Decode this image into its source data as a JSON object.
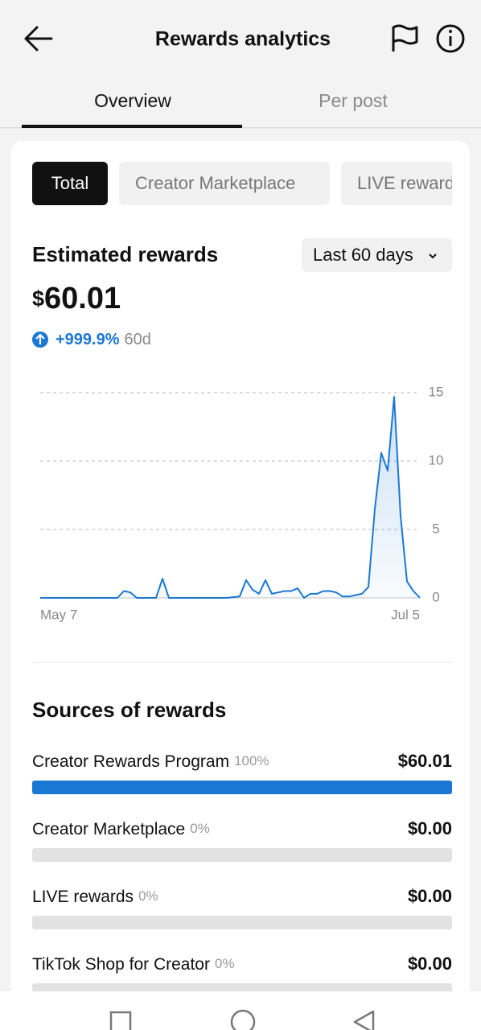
{
  "header": {
    "title": "Rewards analytics"
  },
  "tabs": [
    "Overview",
    "Per post"
  ],
  "filters": [
    "Total",
    "Creator Marketplace",
    "LIVE rewards"
  ],
  "summary": {
    "heading": "Estimated rewards",
    "period": "Last 60 days",
    "currency": "$",
    "amount": "60.01",
    "change": "+999.9%",
    "change_period": "60d"
  },
  "chart_data": {
    "type": "line",
    "categories": [
      "May 7",
      null,
      null,
      null,
      null,
      null,
      null,
      null,
      null,
      null,
      null,
      null,
      null,
      null,
      null,
      null,
      null,
      null,
      null,
      null,
      null,
      null,
      null,
      null,
      null,
      null,
      null,
      null,
      null,
      null,
      null,
      null,
      null,
      null,
      null,
      null,
      null,
      null,
      null,
      null,
      null,
      null,
      null,
      null,
      null,
      null,
      null,
      null,
      null,
      null,
      null,
      null,
      null,
      null,
      null,
      null,
      null,
      null,
      null,
      "Jul 5"
    ],
    "series": [
      {
        "color": "#1a78d4",
        "values": [
          0,
          0,
          0,
          0,
          0,
          0,
          0,
          0,
          0,
          0,
          0,
          0,
          0,
          0.5,
          0.4,
          0,
          0,
          0,
          0,
          1.4,
          0,
          0,
          0,
          0,
          0,
          0,
          0,
          0,
          0,
          0,
          0.05,
          0.1,
          1.3,
          0.6,
          0.3,
          1.3,
          0.3,
          0.4,
          0.5,
          0.5,
          0.7,
          0,
          0.3,
          0.3,
          0.5,
          0.5,
          0.4,
          0.1,
          0.1,
          0.2,
          0.3,
          0.8,
          6.5,
          10.6,
          9.3,
          14.7,
          6,
          1.2,
          0.5,
          0
        ]
      }
    ],
    "ylim": [
      0,
      15
    ],
    "yticks": [
      0,
      5,
      10,
      15
    ],
    "grid": true
  },
  "sources": {
    "heading": "Sources of rewards",
    "rows": [
      {
        "label": "Creator Rewards Program",
        "percent": 100,
        "percent_label": "100%",
        "amount": "$60.01"
      },
      {
        "label": "Creator Marketplace",
        "percent": 0,
        "percent_label": "0%",
        "amount": "$0.00"
      },
      {
        "label": "LIVE rewards",
        "percent": 0,
        "percent_label": "0%",
        "amount": "$0.00"
      },
      {
        "label": "TikTok Shop for Creator",
        "percent": 0,
        "percent_label": "0%",
        "amount": "$0.00"
      }
    ]
  }
}
